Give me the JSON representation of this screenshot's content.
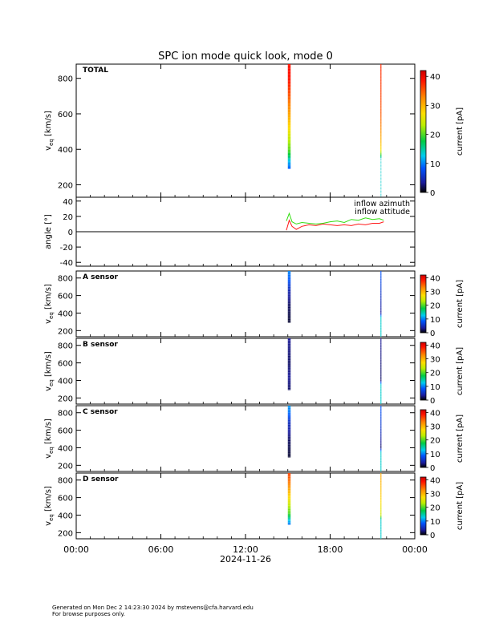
{
  "title": "SPC ion mode quick look, mode 0",
  "date_label": "2024-11-26",
  "x_ticks": [
    "00:00",
    "06:00",
    "12:00",
    "18:00",
    "00:00"
  ],
  "footer": {
    "line1": "Generated on Mon Dec  2 14:23:30 2024 by mstevens@cfa.harvard.edu",
    "line2": "For browse purposes only."
  },
  "colorbar_label": "current [pA]",
  "colors": {
    "azimuth": "#ff1a1a",
    "attitude": "#33dd11"
  },
  "chart_data": [
    {
      "type": "heatmap",
      "name": "TOTAL",
      "ylabel": "v_eq [km/s]",
      "ylim": [
        130,
        880
      ],
      "yticks": [
        200,
        400,
        600,
        800
      ],
      "colorbar": {
        "label": "current [pA]",
        "range": [
          0,
          42
        ],
        "ticks": [
          0,
          10,
          20,
          30,
          40
        ]
      },
      "strips": [
        {
          "time_hours": 15.1,
          "vmin": 290,
          "vmax": 880,
          "profile": [
            [
              290,
              8
            ],
            [
              330,
              12
            ],
            [
              360,
              17
            ],
            [
              390,
              20
            ],
            [
              430,
              22
            ],
            [
              470,
              24
            ],
            [
              520,
              27
            ],
            [
              560,
              29
            ],
            [
              620,
              32
            ],
            [
              700,
              35
            ],
            [
              800,
              38
            ],
            [
              880,
              38
            ]
          ]
        },
        {
          "time_hours": 21.6,
          "vmin": 130,
          "vmax": 880,
          "profile": [
            [
              130,
              14
            ],
            [
              350,
              14
            ],
            [
              400,
              27
            ],
            [
              450,
              30
            ],
            [
              520,
              33
            ],
            [
              600,
              35
            ],
            [
              700,
              36
            ],
            [
              880,
              37
            ]
          ]
        }
      ]
    },
    {
      "type": "line",
      "ylabel": "angle [°]",
      "ylim": [
        -45,
        45
      ],
      "yticks": [
        -40,
        -20,
        0,
        20,
        40
      ],
      "series": [
        {
          "name": "inflow azimuth",
          "color": "#ff1a1a",
          "x": [
            14.9,
            15.1,
            15.3,
            15.6,
            16.0,
            16.5,
            17.0,
            17.5,
            18.0,
            18.5,
            19.0,
            19.5,
            20.0,
            20.5,
            21.0,
            21.5,
            21.8
          ],
          "y": [
            2,
            15,
            7,
            3,
            7,
            9,
            8,
            10,
            9,
            8,
            9,
            8,
            10,
            9,
            11,
            11,
            13
          ]
        },
        {
          "name": "inflow attitude",
          "color": "#33dd11",
          "x": [
            14.9,
            15.1,
            15.3,
            15.6,
            16.0,
            16.5,
            17.0,
            17.5,
            18.0,
            18.5,
            19.0,
            19.5,
            20.0,
            20.5,
            21.0,
            21.5,
            21.8
          ],
          "y": [
            14,
            24,
            13,
            10,
            12,
            11,
            10,
            11,
            13,
            14,
            12,
            16,
            15,
            18,
            16,
            17,
            15
          ]
        }
      ]
    },
    {
      "type": "heatmap",
      "name": "A sensor",
      "ylabel": "v_eq [km/s]",
      "ylim": [
        130,
        880
      ],
      "yticks": [
        200,
        400,
        600,
        800
      ],
      "colorbar": {
        "label": "current [pA]",
        "range": [
          0,
          42
        ],
        "ticks": [
          0,
          10,
          20,
          30,
          40
        ]
      },
      "strips": [
        {
          "time_hours": 15.1,
          "vmin": 290,
          "vmax": 880,
          "profile": [
            [
              290,
              1
            ],
            [
              500,
              2
            ],
            [
              650,
              4
            ],
            [
              720,
              6
            ],
            [
              780,
              8
            ],
            [
              880,
              10
            ]
          ]
        },
        {
          "time_hours": 21.6,
          "vmin": 130,
          "vmax": 880,
          "profile": [
            [
              130,
              14
            ],
            [
              350,
              14
            ],
            [
              400,
              3
            ],
            [
              600,
              5
            ],
            [
              880,
              8
            ]
          ]
        }
      ]
    },
    {
      "type": "heatmap",
      "name": "B sensor",
      "ylabel": "v_eq [km/s]",
      "ylim": [
        130,
        880
      ],
      "yticks": [
        200,
        400,
        600,
        800
      ],
      "colorbar": {
        "label": "current [pA]",
        "range": [
          0,
          42
        ],
        "ticks": [
          0,
          10,
          20,
          30,
          40
        ]
      },
      "strips": [
        {
          "time_hours": 15.1,
          "vmin": 290,
          "vmax": 880,
          "profile": [
            [
              290,
              2
            ],
            [
              450,
              3
            ],
            [
              600,
              2
            ],
            [
              880,
              3
            ]
          ]
        },
        {
          "time_hours": 21.6,
          "vmin": 130,
          "vmax": 880,
          "profile": [
            [
              130,
              14
            ],
            [
              350,
              14
            ],
            [
              400,
              2
            ],
            [
              880,
              3
            ]
          ]
        }
      ]
    },
    {
      "type": "heatmap",
      "name": "C sensor",
      "ylabel": "v_eq [km/s]",
      "ylim": [
        130,
        880
      ],
      "yticks": [
        200,
        400,
        600,
        800
      ],
      "colorbar": {
        "label": "current [pA]",
        "range": [
          0,
          42
        ],
        "ticks": [
          0,
          10,
          20,
          30,
          40
        ]
      },
      "strips": [
        {
          "time_hours": 15.1,
          "vmin": 290,
          "vmax": 880,
          "profile": [
            [
              290,
              1
            ],
            [
              500,
              2
            ],
            [
              700,
              5
            ],
            [
              800,
              9
            ],
            [
              880,
              11
            ]
          ]
        },
        {
          "time_hours": 21.6,
          "vmin": 130,
          "vmax": 880,
          "profile": [
            [
              130,
              14
            ],
            [
              350,
              14
            ],
            [
              400,
              2
            ],
            [
              600,
              5
            ],
            [
              880,
              8
            ]
          ]
        }
      ]
    },
    {
      "type": "heatmap",
      "name": "D sensor",
      "ylabel": "v_eq [km/s]",
      "ylim": [
        130,
        880
      ],
      "yticks": [
        200,
        400,
        600,
        800
      ],
      "colorbar": {
        "label": "current [pA]",
        "range": [
          0,
          42
        ],
        "ticks": [
          0,
          10,
          20,
          30,
          40
        ]
      },
      "strips": [
        {
          "time_hours": 15.1,
          "vmin": 290,
          "vmax": 880,
          "profile": [
            [
              290,
              9
            ],
            [
              330,
              12
            ],
            [
              370,
              16
            ],
            [
              420,
              20
            ],
            [
              480,
              22
            ],
            [
              550,
              25
            ],
            [
              650,
              29
            ],
            [
              750,
              33
            ],
            [
              880,
              36
            ]
          ]
        },
        {
          "time_hours": 21.6,
          "vmin": 130,
          "vmax": 880,
          "profile": [
            [
              130,
              14
            ],
            [
              350,
              14
            ],
            [
              400,
              24
            ],
            [
              600,
              28
            ],
            [
              880,
              31
            ]
          ]
        }
      ]
    }
  ]
}
